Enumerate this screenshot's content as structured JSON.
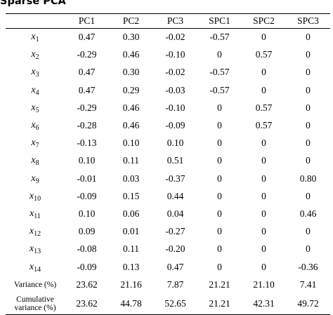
{
  "title": "Sparse PCA",
  "columns": [
    "PC1",
    "PC2",
    "PC3",
    "SPC1",
    "SPC2",
    "SPC3"
  ],
  "rows": [
    {
      "var": "x",
      "sub": "1",
      "values": [
        "0.47",
        "0.30",
        "-0.02",
        "-0.57",
        "0",
        "0"
      ]
    },
    {
      "var": "x",
      "sub": "2",
      "values": [
        "-0.29",
        "0.46",
        "-0.10",
        "0",
        "0.57",
        "0"
      ]
    },
    {
      "var": "x",
      "sub": "3",
      "values": [
        "0.47",
        "0.30",
        "-0.02",
        "-0.57",
        "0",
        "0"
      ]
    },
    {
      "var": "x",
      "sub": "4",
      "values": [
        "0.47",
        "0.29",
        "-0.03",
        "-0.57",
        "0",
        "0"
      ]
    },
    {
      "var": "x",
      "sub": "5",
      "values": [
        "-0.29",
        "0.46",
        "-0.10",
        "0",
        "0.57",
        "0"
      ]
    },
    {
      "var": "x",
      "sub": "6",
      "values": [
        "-0.28",
        "0.46",
        "-0.09",
        "0",
        "0.57",
        "0"
      ]
    },
    {
      "var": "x",
      "sub": "7",
      "values": [
        "-0.13",
        "0.10",
        "0.10",
        "0",
        "0",
        "0"
      ]
    },
    {
      "var": "x",
      "sub": "8",
      "values": [
        "0.10",
        "0.11",
        "0.51",
        "0",
        "0",
        "0"
      ]
    },
    {
      "var": "x",
      "sub": "9",
      "values": [
        "-0.01",
        "0.03",
        "-0.37",
        "0",
        "0",
        "0.80"
      ]
    },
    {
      "var": "x",
      "sub": "10",
      "values": [
        "-0.09",
        "0.15",
        "0.44",
        "0",
        "0",
        "0"
      ]
    },
    {
      "var": "x",
      "sub": "11",
      "values": [
        "0.10",
        "0.06",
        "0.04",
        "0",
        "0",
        "0.46"
      ]
    },
    {
      "var": "x",
      "sub": "12",
      "values": [
        "0.09",
        "0.01",
        "-0.27",
        "0",
        "0",
        "0"
      ]
    },
    {
      "var": "x",
      "sub": "13",
      "values": [
        "-0.08",
        "0.11",
        "-0.20",
        "0",
        "0",
        "0"
      ]
    },
    {
      "var": "x",
      "sub": "14",
      "values": [
        "-0.09",
        "0.13",
        "0.47",
        "0",
        "0",
        "-0.36"
      ]
    }
  ],
  "summary": [
    {
      "label_line1": "Variance (%)",
      "label_line2": "",
      "values": [
        "23.62",
        "21.16",
        "7.87",
        "21.21",
        "21.10",
        "7.41"
      ]
    },
    {
      "label_line1": "Cumulative",
      "label_line2": "variance (%)",
      "values": [
        "23.62",
        "44.78",
        "52.65",
        "21.21",
        "42.31",
        "49.72"
      ]
    }
  ]
}
